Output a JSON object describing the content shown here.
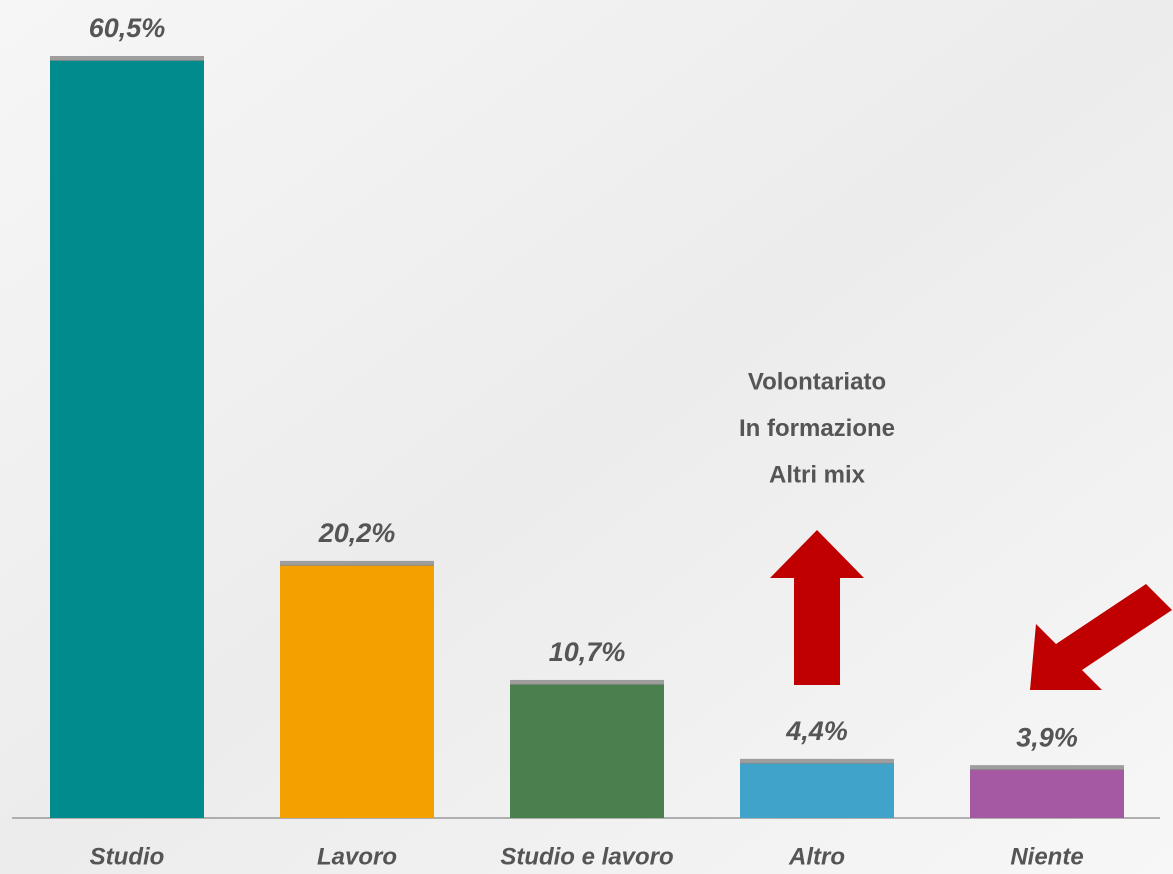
{
  "chart_data": {
    "type": "bar",
    "categories": [
      "Studio",
      "Lavoro",
      "Studio e lavoro",
      "Altro",
      "Niente"
    ],
    "values": [
      60.5,
      20.2,
      10.7,
      4.4,
      3.9
    ],
    "value_labels": [
      "60,5%",
      "20,2%",
      "10,7%",
      "4,4%",
      "3,9%"
    ],
    "colors": [
      "#018b8c",
      "#f4a100",
      "#4a7f4e",
      "#40a3c9",
      "#a559a2"
    ],
    "annotation": [
      "Volontariato",
      "In formazione",
      "Altri mix"
    ]
  }
}
